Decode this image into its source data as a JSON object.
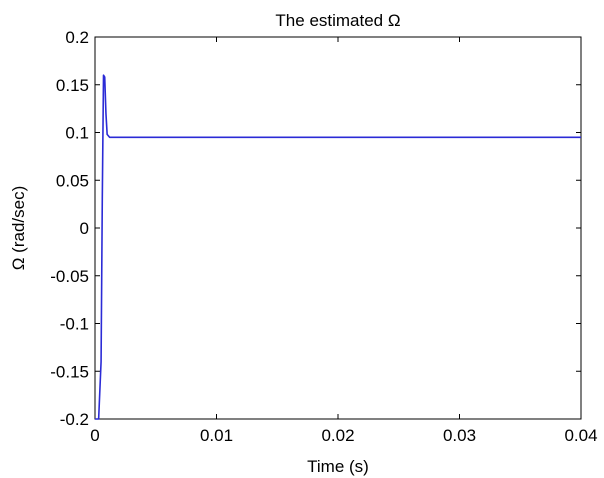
{
  "chart_data": {
    "type": "line",
    "title": "The estimated Ω",
    "xlabel": "Time (s)",
    "ylabel": "Ω (rad/sec)",
    "xlim": [
      0,
      0.04
    ],
    "ylim": [
      -0.2,
      0.2
    ],
    "x_ticks": [
      0,
      0.01,
      0.02,
      0.03,
      0.04
    ],
    "x_tick_labels": [
      "0",
      "0.01",
      "0.02",
      "0.03",
      "0.04"
    ],
    "y_ticks": [
      -0.2,
      -0.15,
      -0.1,
      -0.05,
      0,
      0.05,
      0.1,
      0.15,
      0.2
    ],
    "y_tick_labels": [
      "-0.2",
      "-0.15",
      "-0.1",
      "-0.05",
      "0",
      "0.05",
      "0.1",
      "0.15",
      "0.2"
    ],
    "grid": false,
    "series": [
      {
        "color": "#2b2bd6",
        "x": [
          0,
          0.0003,
          0.0005,
          0.0006,
          0.0007,
          0.0008,
          0.0009,
          0.001,
          0.0012,
          0.0015,
          0.002,
          0.005,
          0.01,
          0.015,
          0.02,
          0.025,
          0.03,
          0.035,
          0.04
        ],
        "y": [
          -0.2,
          -0.2,
          -0.14,
          0.03,
          0.16,
          0.158,
          0.12,
          0.098,
          0.095,
          0.095,
          0.095,
          0.095,
          0.095,
          0.095,
          0.095,
          0.095,
          0.095,
          0.095,
          0.095
        ]
      }
    ]
  }
}
